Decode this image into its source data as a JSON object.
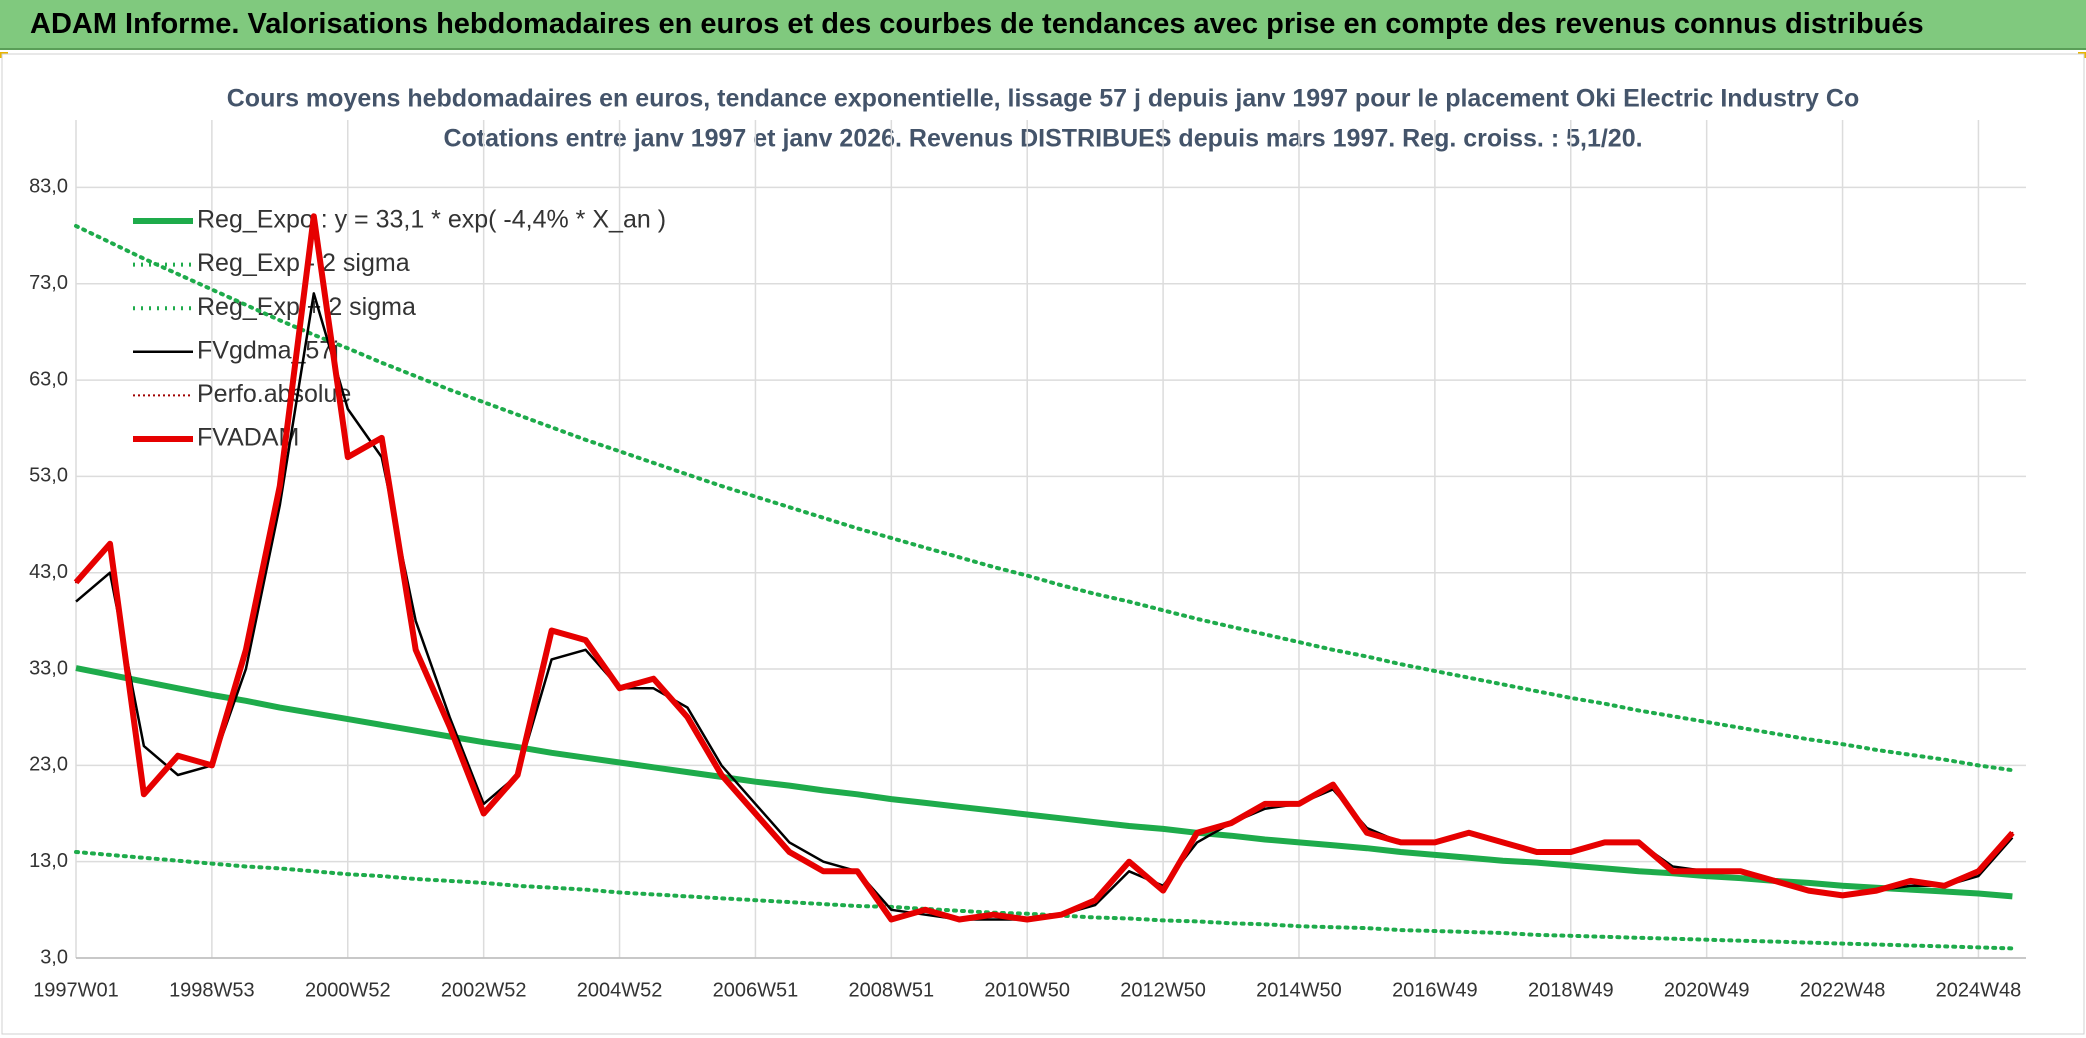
{
  "header": {
    "title": "ADAM Informe. Valorisations hebdomadaires en euros et des courbes de tendances avec prise en compte des revenus connus distribués"
  },
  "chart_data": {
    "type": "line",
    "title": "Cours moyens hebdomadaires en euros, tendance exponentielle, lissage 57 j depuis janv 1997 pour le placement Oki Electric Industry Co",
    "subtitle": "Cotations entre janv 1997 et janv 2026. Revenus DISTRIBUES depuis mars 1997. Reg. croiss. : 5,1/20.",
    "categories": [
      "1997W01",
      null,
      null,
      null,
      "1998W53",
      null,
      null,
      null,
      "2000W52",
      null,
      null,
      null,
      "2002W52",
      null,
      null,
      null,
      "2004W52",
      null,
      null,
      null,
      "2006W51",
      null,
      null,
      null,
      "2008W51",
      null,
      null,
      null,
      "2010W50",
      null,
      null,
      null,
      "2012W50",
      null,
      null,
      null,
      "2014W50",
      null,
      null,
      null,
      "2016W49",
      null,
      null,
      null,
      "2018W49",
      null,
      null,
      null,
      "2020W49",
      null,
      null,
      null,
      "2022W48",
      null,
      null,
      null,
      "2024W48",
      null
    ],
    "ylim": [
      3,
      90
    ],
    "yticks": [
      {
        "value": 3,
        "label": "3,0"
      },
      {
        "value": 13,
        "label": "13,0"
      },
      {
        "value": 23,
        "label": "23,0"
      },
      {
        "value": 33,
        "label": "33,0"
      },
      {
        "value": 43,
        "label": "43,0"
      },
      {
        "value": 53,
        "label": "53,0"
      },
      {
        "value": 63,
        "label": "63,0"
      },
      {
        "value": 73,
        "label": "73,0"
      },
      {
        "value": 83,
        "label": "83,0"
      }
    ],
    "grid": true,
    "legend": "top-left",
    "series": [
      {
        "name": "Reg_Expo : y = 33,1 * exp( -4,4% *  X_an )",
        "color": "#1eab4b",
        "style": "thick",
        "values": [
          33.1,
          32.4,
          31.7,
          31.0,
          30.3,
          29.7,
          29.0,
          28.4,
          27.8,
          27.2,
          26.6,
          26.0,
          25.4,
          24.9,
          24.3,
          23.8,
          23.3,
          22.8,
          22.3,
          21.8,
          21.3,
          20.9,
          20.4,
          20.0,
          19.5,
          19.1,
          18.7,
          18.3,
          17.9,
          17.5,
          17.1,
          16.7,
          16.4,
          16.0,
          15.7,
          15.3,
          15.0,
          14.7,
          14.4,
          14.0,
          13.7,
          13.4,
          13.1,
          12.9,
          12.6,
          12.3,
          12.0,
          11.8,
          11.5,
          11.3,
          11.0,
          10.8,
          10.5,
          10.3,
          10.1,
          9.9,
          9.7,
          9.4
        ]
      },
      {
        "name": "Reg_Exp - 2 sigma",
        "color": "#1eab4b",
        "style": "dotted",
        "values": [
          14.0,
          13.7,
          13.4,
          13.1,
          12.8,
          12.5,
          12.3,
          12.0,
          11.7,
          11.5,
          11.2,
          11.0,
          10.8,
          10.5,
          10.3,
          10.1,
          9.8,
          9.6,
          9.4,
          9.2,
          9.0,
          8.8,
          8.6,
          8.4,
          8.3,
          8.1,
          7.9,
          7.7,
          7.6,
          7.4,
          7.2,
          7.1,
          6.9,
          6.8,
          6.6,
          6.5,
          6.3,
          6.2,
          6.1,
          5.9,
          5.8,
          5.7,
          5.6,
          5.4,
          5.3,
          5.2,
          5.1,
          5.0,
          4.9,
          4.8,
          4.7,
          4.6,
          4.5,
          4.4,
          4.3,
          4.2,
          4.1,
          4.0
        ]
      },
      {
        "name": "Reg_Exp + 2 sigma",
        "color": "#1eab4b",
        "style": "dotted",
        "values": [
          79.0,
          77.3,
          75.6,
          74.0,
          72.4,
          70.8,
          69.2,
          67.7,
          66.3,
          64.8,
          63.4,
          62.0,
          60.7,
          59.4,
          58.1,
          56.8,
          55.6,
          54.4,
          53.2,
          52.0,
          50.9,
          49.8,
          48.7,
          47.6,
          46.6,
          45.6,
          44.6,
          43.6,
          42.7,
          41.7,
          40.8,
          40.0,
          39.1,
          38.2,
          37.4,
          36.6,
          35.8,
          35.0,
          34.3,
          33.5,
          32.8,
          32.1,
          31.4,
          30.7,
          30.0,
          29.4,
          28.7,
          28.1,
          27.5,
          26.9,
          26.3,
          25.7,
          25.2,
          24.6,
          24.1,
          23.6,
          23.0,
          22.5
        ]
      },
      {
        "name": "FVgdma_57j",
        "color": "#000000",
        "style": "thin",
        "values": [
          40,
          43,
          25,
          22,
          23,
          33,
          50,
          72,
          60,
          55,
          38,
          28,
          19,
          22,
          34,
          35,
          31,
          31,
          29,
          23,
          19,
          15,
          13,
          12,
          8,
          7.5,
          7,
          7,
          7,
          7.5,
          8.5,
          12,
          10.5,
          15,
          17,
          18.5,
          19,
          20.5,
          16.5,
          15,
          15,
          16,
          15,
          14,
          14,
          15,
          15,
          12.5,
          12,
          12,
          11,
          10,
          9.5,
          10,
          10.5,
          10.5,
          11.5,
          15.5
        ]
      },
      {
        "name": "Perfo.absolue",
        "color": "#a00000",
        "style": "dotted-thin",
        "values": [
          42,
          46,
          20,
          24,
          23,
          35,
          52,
          80,
          55,
          57,
          35,
          27,
          18,
          22,
          37,
          36,
          31,
          32,
          28,
          22,
          18,
          14,
          12,
          12,
          7,
          8,
          7,
          7.5,
          7,
          7.5,
          9,
          13,
          10,
          16,
          17,
          19,
          19,
          21,
          16,
          15,
          15,
          16,
          15,
          14,
          14,
          15,
          15,
          12,
          12,
          12,
          11,
          10,
          9.5,
          10,
          11,
          10.5,
          12,
          16
        ]
      },
      {
        "name": "FVADAM",
        "color": "#e60000",
        "style": "thick",
        "values": [
          42,
          46,
          20,
          24,
          23,
          35,
          52,
          80,
          55,
          57,
          35,
          27,
          18,
          22,
          37,
          36,
          31,
          32,
          28,
          22,
          18,
          14,
          12,
          12,
          7,
          8,
          7,
          7.5,
          7,
          7.5,
          9,
          13,
          10,
          16,
          17,
          19,
          19,
          21,
          16,
          15,
          15,
          16,
          15,
          14,
          14,
          15,
          15,
          12,
          12,
          12,
          11,
          10,
          9.5,
          10,
          11,
          10.5,
          12,
          16
        ]
      }
    ]
  }
}
